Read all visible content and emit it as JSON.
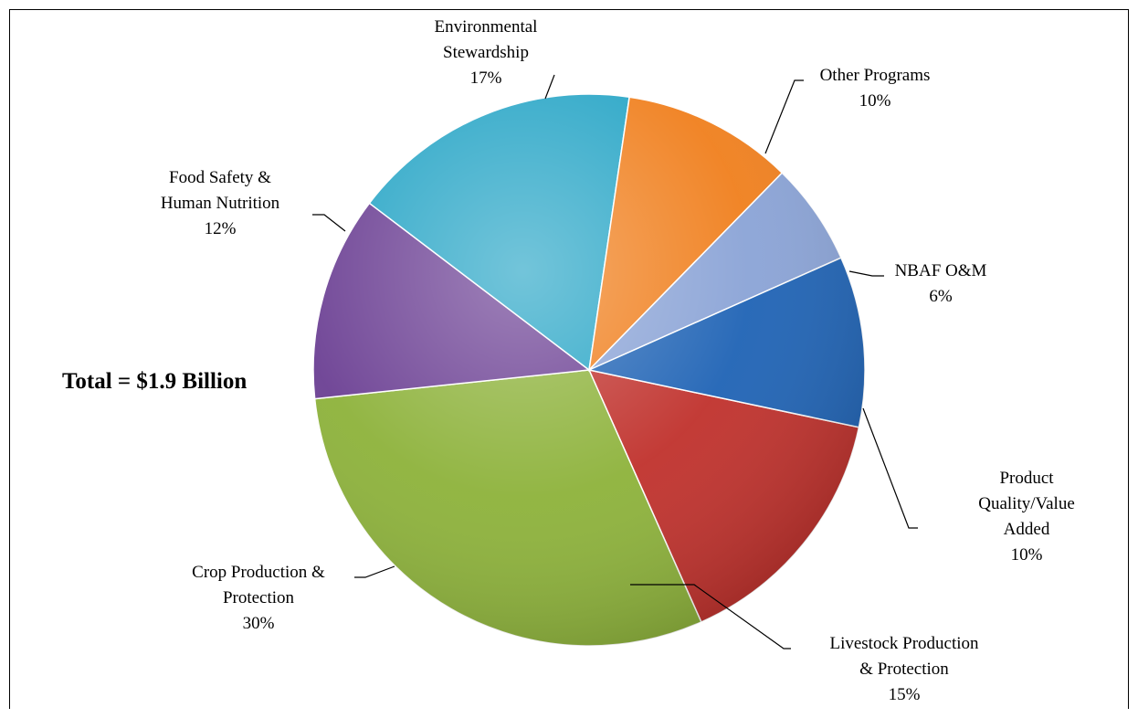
{
  "chart_data": {
    "type": "pie",
    "title": "",
    "annotation": "Total = $1.9 Billion",
    "slices": [
      {
        "label": "Livestock Production & Protection",
        "label_lines": [
          "Livestock Production",
          "& Protection"
        ],
        "percent_text": "15%",
        "value": 15,
        "color": "#c0312c"
      },
      {
        "label": "Crop Production & Protection",
        "label_lines": [
          "Crop Production &",
          "Protection"
        ],
        "percent_text": "30%",
        "value": 30,
        "color": "#8db23a"
      },
      {
        "label": "Food Safety & Human Nutrition",
        "label_lines": [
          "Food Safety &",
          "Human Nutrition"
        ],
        "percent_text": "12%",
        "value": 12,
        "color": "#6b3f93"
      },
      {
        "label": "Environmental Stewardship",
        "label_lines": [
          "Environmental",
          "Stewardship"
        ],
        "percent_text": "17%",
        "value": 17,
        "color": "#27a5c6"
      },
      {
        "label": "Other Programs",
        "label_lines": [
          "Other Programs"
        ],
        "percent_text": "10%",
        "value": 10,
        "color": "#f07f1d"
      },
      {
        "label": "NBAF O&M",
        "label_lines": [
          "NBAF O&M"
        ],
        "percent_text": "6%",
        "value": 6,
        "color": "#8aa3d6"
      },
      {
        "label": "Product Quality/Value Added",
        "label_lines": [
          "Product",
          "Quality/Value",
          "Added"
        ],
        "percent_text": "10%",
        "value": 10,
        "color": "#1f63b5"
      }
    ]
  }
}
